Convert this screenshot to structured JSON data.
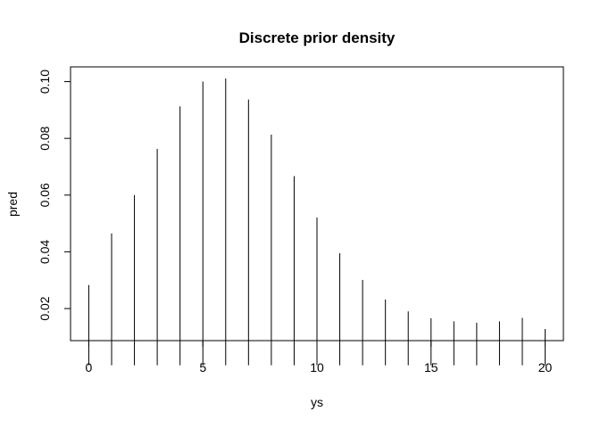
{
  "chart_data": {
    "type": "bar",
    "title": "Discrete prior density",
    "xlabel": "ys",
    "ylabel": "pred",
    "x": [
      0,
      1,
      2,
      3,
      4,
      5,
      6,
      7,
      8,
      9,
      10,
      11,
      12,
      13,
      14,
      15,
      16,
      17,
      18,
      19,
      20
    ],
    "values": [
      0.0283,
      0.0465,
      0.06,
      0.0763,
      0.0913,
      0.1,
      0.1011,
      0.0937,
      0.0813,
      0.0667,
      0.0521,
      0.0395,
      0.0301,
      0.0232,
      0.019,
      0.0166,
      0.0155,
      0.015,
      0.0155,
      0.0167,
      0.0128
    ],
    "xlim": [
      -0.8,
      20.8
    ],
    "ylim": [
      0.0087,
      0.1052
    ],
    "xticks": [
      0,
      5,
      10,
      15,
      20
    ],
    "xtick_labels": [
      "0",
      "5",
      "10",
      "15",
      "20"
    ],
    "yticks": [
      0.02,
      0.04,
      0.06,
      0.08,
      0.1
    ],
    "ytick_labels": [
      "0.02",
      "0.04",
      "0.06",
      "0.08",
      "0.10"
    ],
    "grid": false,
    "legend": "none"
  }
}
